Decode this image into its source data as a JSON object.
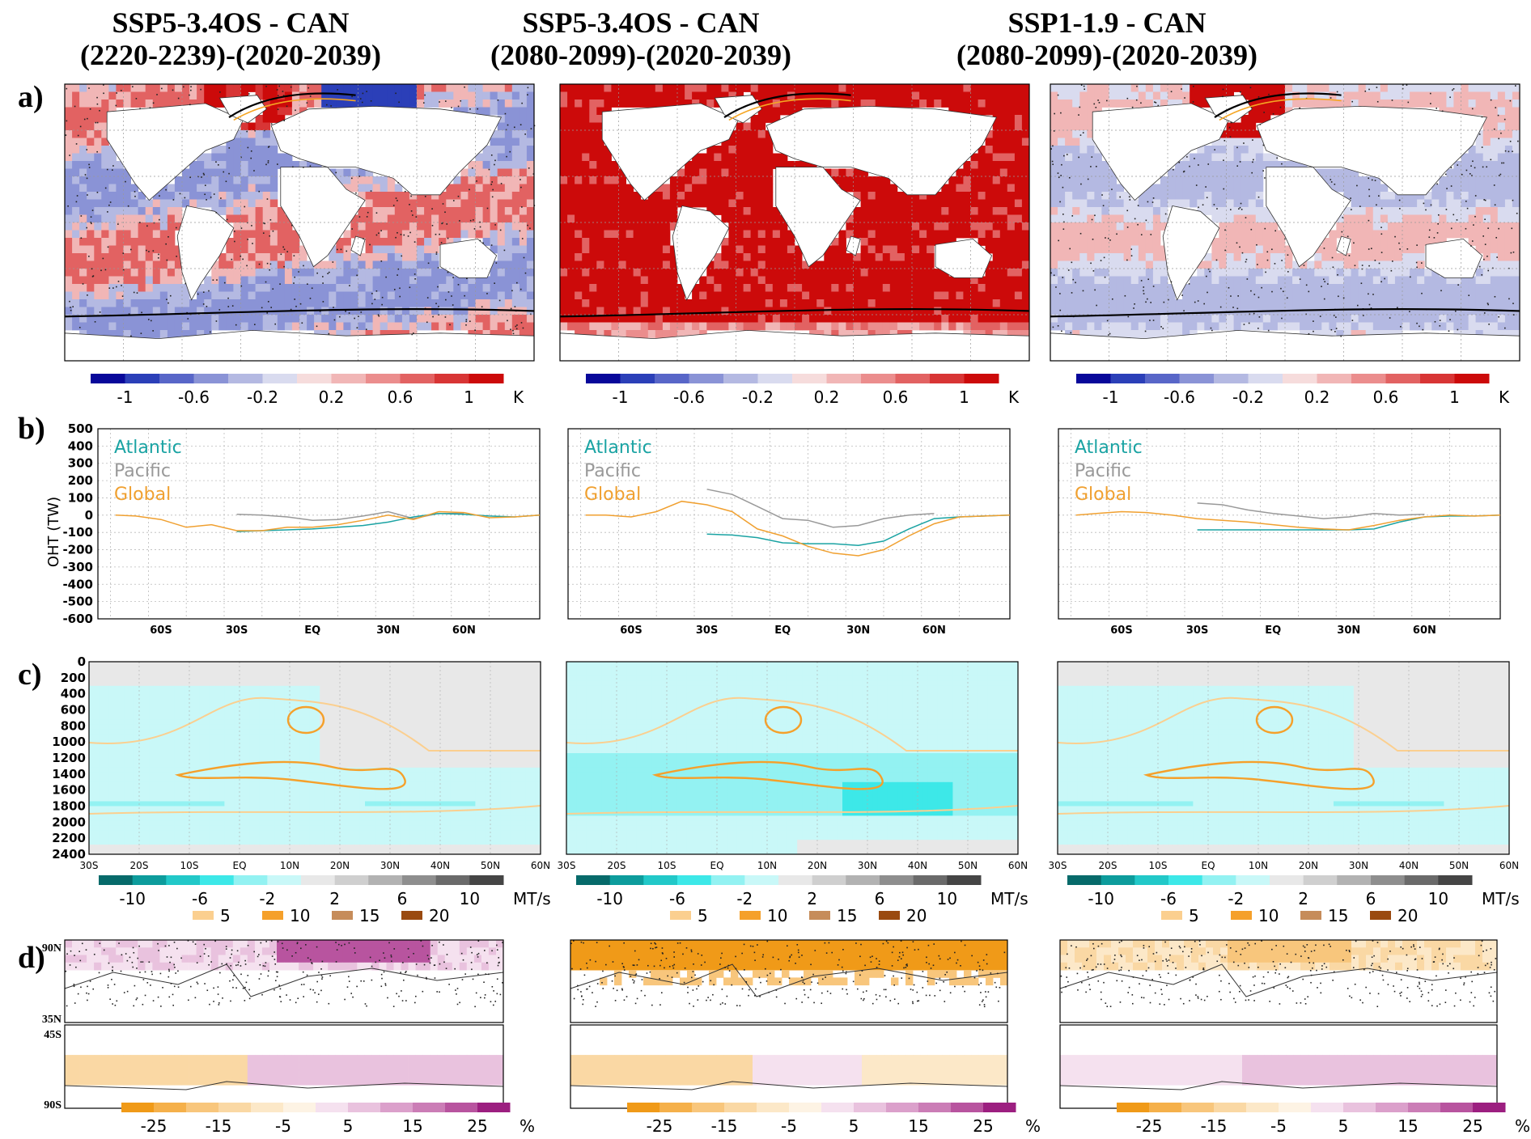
{
  "columns": [
    {
      "title_line1": "SSP5-3.4OS - CAN",
      "title_line2": "(2220-2239)-(2020-2039)",
      "map_style": "moderate"
    },
    {
      "title_line1": "SSP5-3.4OS - CAN",
      "title_line2": "(2080-2099)-(2020-2039)",
      "map_style": "hot"
    },
    {
      "title_line1": "SSP1-1.9 - CAN",
      "title_line2": "(2080-2099)-(2020-2039)",
      "map_style": "cool"
    }
  ],
  "row_labels": [
    "a)",
    "b)",
    "c)",
    "d)"
  ],
  "colors": {
    "atlantic": "#1aa3a3",
    "pacific": "#999999",
    "global": "#f0a030",
    "sea_ice_line": "#000000",
    "sea_ice_line2": "#f5a623"
  },
  "chart_data": [
    {
      "panel": "a",
      "type": "heatmap",
      "colorbar": {
        "ticks": [
          "-1",
          "-0.6",
          "-0.2",
          "0.2",
          "0.6",
          "1"
        ],
        "unit": "K",
        "colors": [
          "#08089a",
          "#2b3fb8",
          "#5866c8",
          "#8a93d6",
          "#b4b9e2",
          "#d9dbef",
          "#f6dcdc",
          "#f1b6b6",
          "#eb8d8d",
          "#e26262",
          "#d83535",
          "#cc0a0a"
        ]
      }
    },
    {
      "panel": "b",
      "type": "line",
      "ylabel": "OHT (TW)",
      "yticks": [
        "500",
        "400",
        "300",
        "200",
        "100",
        "0",
        "-100",
        "-200",
        "-300",
        "-400",
        "-500",
        "-600"
      ],
      "ylim": [
        -600,
        500
      ],
      "xticks": [
        "60S",
        "30S",
        "EQ",
        "30N",
        "60N"
      ],
      "xlim": [
        -85,
        90
      ],
      "legend": [
        "Atlantic",
        "Pacific",
        "Global"
      ],
      "panels": [
        {
          "atlantic": {
            "x": [
              -30,
              -20,
              -10,
              0,
              10,
              20,
              30,
              35,
              40,
              50,
              60,
              70,
              80,
              90
            ],
            "y": [
              -95,
              -90,
              -85,
              -80,
              -70,
              -60,
              -40,
              -25,
              -10,
              10,
              5,
              -5,
              -10,
              0
            ]
          },
          "pacific": {
            "x": [
              -30,
              -20,
              -10,
              0,
              10,
              20,
              30,
              40,
              50,
              60
            ],
            "y": [
              5,
              0,
              -10,
              -30,
              -25,
              -5,
              20,
              -20,
              10,
              10
            ]
          },
          "global": {
            "x": [
              -78,
              -70,
              -60,
              -50,
              -40,
              -30,
              -20,
              -10,
              0,
              10,
              20,
              30,
              40,
              50,
              60,
              70,
              80,
              90
            ],
            "y": [
              0,
              -5,
              -25,
              -70,
              -55,
              -90,
              -90,
              -70,
              -70,
              -55,
              -30,
              0,
              -25,
              20,
              15,
              -15,
              -10,
              0
            ]
          }
        },
        {
          "atlantic": {
            "x": [
              -30,
              -20,
              -10,
              0,
              10,
              20,
              30,
              40,
              50,
              60,
              70,
              80,
              90
            ],
            "y": [
              -110,
              -115,
              -130,
              -160,
              -165,
              -165,
              -175,
              -150,
              -80,
              -20,
              -10,
              -5,
              0
            ]
          },
          "pacific": {
            "x": [
              -30,
              -20,
              -10,
              0,
              10,
              20,
              30,
              40,
              50,
              60
            ],
            "y": [
              150,
              120,
              50,
              -20,
              -30,
              -70,
              -60,
              -20,
              0,
              10
            ]
          },
          "global": {
            "x": [
              -78,
              -70,
              -60,
              -50,
              -40,
              -30,
              -20,
              -10,
              0,
              10,
              20,
              30,
              40,
              50,
              60,
              70,
              80,
              90
            ],
            "y": [
              0,
              0,
              -10,
              20,
              80,
              60,
              20,
              -80,
              -120,
              -180,
              -220,
              -235,
              -200,
              -120,
              -50,
              -10,
              -5,
              0
            ]
          }
        },
        {
          "atlantic": {
            "x": [
              -30,
              -20,
              -10,
              0,
              10,
              20,
              30,
              40,
              50,
              60,
              70,
              80,
              90
            ],
            "y": [
              -85,
              -85,
              -85,
              -85,
              -85,
              -85,
              -85,
              -80,
              -40,
              -10,
              -5,
              -5,
              0
            ]
          },
          "pacific": {
            "x": [
              -30,
              -20,
              -10,
              0,
              10,
              20,
              30,
              40,
              50,
              60
            ],
            "y": [
              70,
              60,
              30,
              10,
              -5,
              -20,
              -10,
              10,
              0,
              5
            ]
          },
          "global": {
            "x": [
              -78,
              -70,
              -60,
              -50,
              -40,
              -30,
              -20,
              -10,
              0,
              10,
              20,
              30,
              40,
              50,
              60,
              70,
              80,
              90
            ],
            "y": [
              0,
              10,
              20,
              15,
              0,
              -20,
              -30,
              -40,
              -55,
              -70,
              -80,
              -85,
              -60,
              -30,
              -10,
              0,
              -5,
              0
            ]
          }
        }
      ]
    },
    {
      "panel": "c",
      "type": "heatmap",
      "yticks": [
        "0",
        "200",
        "400",
        "600",
        "800",
        "1000",
        "1200",
        "1400",
        "1600",
        "1800",
        "2000",
        "2200",
        "2400"
      ],
      "xticks": [
        "30S",
        "20S",
        "10S",
        "EQ",
        "10N",
        "20N",
        "30N",
        "40N",
        "50N",
        "60N"
      ],
      "colorbar": {
        "ticks": [
          "-10",
          "-6",
          "-2",
          "2",
          "6",
          "10"
        ],
        "unit": "MT/s",
        "colors": [
          "#066a6a",
          "#0d9c9c",
          "#22c8c8",
          "#3de8e8",
          "#93f2f2",
          "#c9f8f8",
          "#e8e8e8",
          "#cfcfcf",
          "#b2b2b2",
          "#8e8e8e",
          "#6a6a6a",
          "#454545"
        ]
      },
      "contour_legend": [
        {
          "label": "5",
          "color": "#fbcf8f"
        },
        {
          "label": "10",
          "color": "#f5a02a"
        },
        {
          "label": "15",
          "color": "#c68c5a"
        },
        {
          "label": "20",
          "color": "#9a4a10"
        }
      ]
    },
    {
      "panel": "d",
      "type": "heatmap",
      "lat_labels": [
        "90N",
        "35N",
        "45S",
        "90S"
      ],
      "colorbar": {
        "ticks": [
          "-25",
          "-15",
          "-5",
          "5",
          "15",
          "25"
        ],
        "unit": "%",
        "colors": [
          "#f09a18",
          "#f5b04a",
          "#f8c67c",
          "#fad8a4",
          "#fce8c8",
          "#fdf3e4",
          "#f5e1ef",
          "#e9c2de",
          "#dba0cb",
          "#cb7db6",
          "#b8549f",
          "#9c1f80"
        ]
      }
    }
  ]
}
